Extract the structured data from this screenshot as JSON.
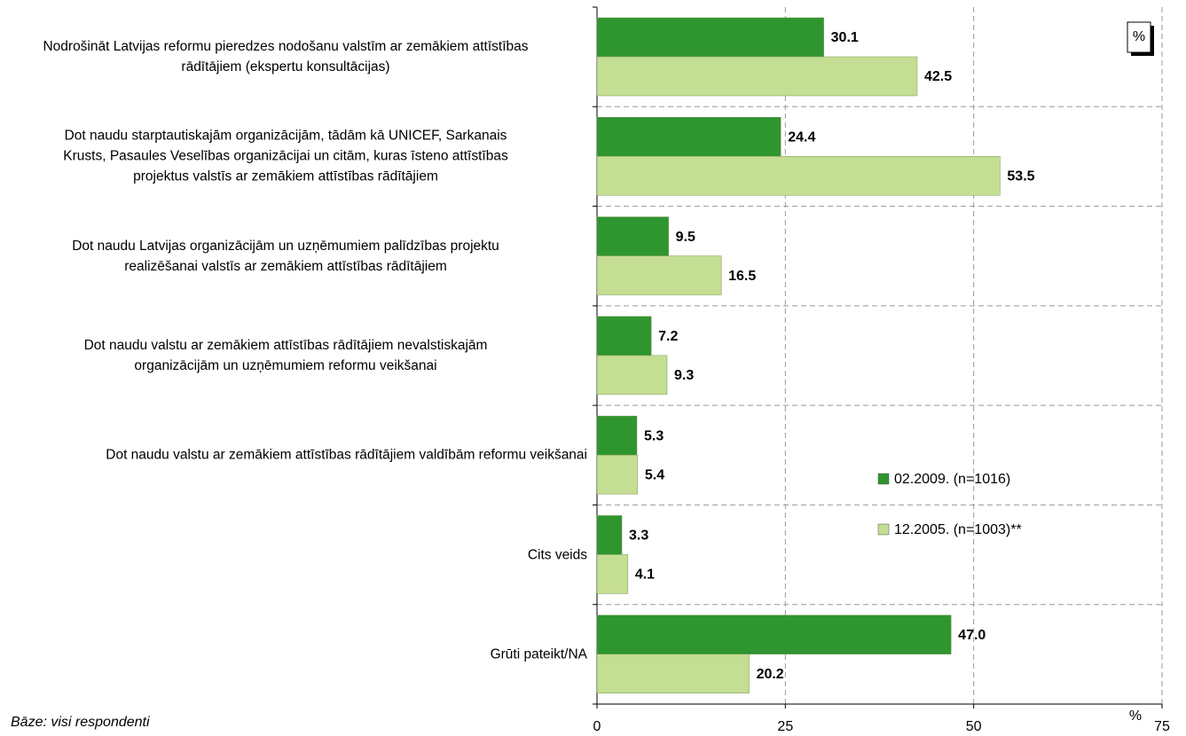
{
  "chart_data": {
    "type": "bar",
    "orientation": "horizontal",
    "categories": [
      "Nodrošināt Latvijas reformu pieredzes nodošanu valstīm ar zemākiem attīstības\nrādītājiem (ekspertu konsultācijas)",
      "Dot naudu starptautiskajām organizācijām, tādām kā UNICEF, Sarkanais\nKrusts, Pasaules Veselības organizācijai un citām, kuras īsteno attīstības\nprojektus valstīs ar zemākiem attīstības rādītājiem",
      "Dot naudu Latvijas organizācijām un uzņēmumiem palīdzības projektu\nrealizēšanai valstīs ar zemākiem attīstības rādītājiem",
      "Dot naudu valstu ar zemākiem attīstības rādītājiem nevalstiskajām\norganizācijām un uzņēmumiem reformu veikšanai",
      "Dot naudu valstu ar zemākiem attīstības rādītājiem valdībām reformu veikšanai",
      "Cits veids",
      "Grūti pateikt/NA"
    ],
    "series": [
      {
        "name": "02.2009. (n=1016)",
        "color": "#2f952f",
        "values": [
          30.1,
          24.4,
          9.5,
          7.2,
          5.3,
          3.3,
          47.0
        ],
        "value_labels": [
          "30.1",
          "24.4",
          "9.5",
          "7.2",
          "5.3",
          "3.3",
          "47.0"
        ]
      },
      {
        "name": "12.2005. (n=1003)**",
        "color": "#c4de93",
        "values": [
          42.5,
          53.5,
          16.5,
          9.3,
          5.4,
          4.1,
          20.2
        ],
        "value_labels": [
          "42.5",
          "53.5",
          "16.5",
          "9.3",
          "5.4",
          "4.1",
          "20.2"
        ]
      }
    ],
    "xlim": [
      0,
      75
    ],
    "xticks": [
      0,
      25,
      50,
      75
    ],
    "x_unit": "%",
    "unit_box": "%",
    "grid": true,
    "footnote": "Bāze: visi respondenti"
  }
}
